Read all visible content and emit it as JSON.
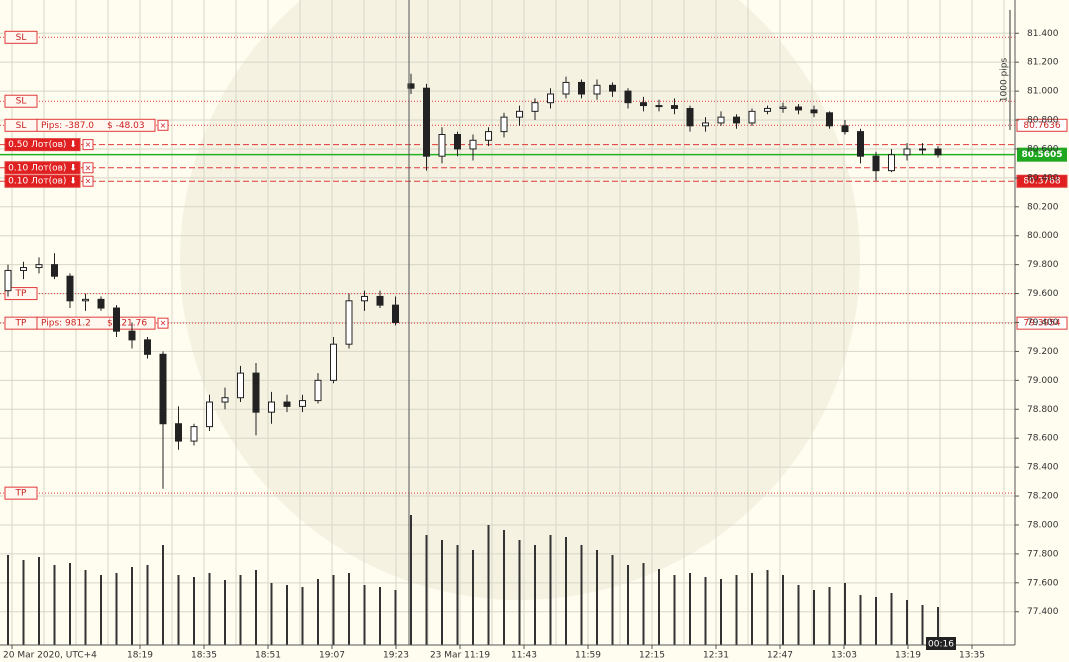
{
  "chart_data": {
    "type": "candlestick",
    "ylim": [
      77.17,
      81.63
    ],
    "yticks": [
      {
        "value": 77.4,
        "label": "77.400"
      },
      {
        "value": 77.6,
        "label": "77.600"
      },
      {
        "value": 77.8,
        "label": "77.800"
      },
      {
        "value": 78.0,
        "label": "78.000"
      },
      {
        "value": 78.2,
        "label": "78.200"
      },
      {
        "value": 78.4,
        "label": "78.400"
      },
      {
        "value": 78.6,
        "label": "78.600"
      },
      {
        "value": 78.8,
        "label": "78.800"
      },
      {
        "value": 79.0,
        "label": "79.000"
      },
      {
        "value": 79.2,
        "label": "79.200"
      },
      {
        "value": 79.4,
        "label": "79.400"
      },
      {
        "value": 79.6,
        "label": "79.600"
      },
      {
        "value": 79.8,
        "label": "79.800"
      },
      {
        "value": 80.0,
        "label": "80.000"
      },
      {
        "value": 80.2,
        "label": "80.200"
      },
      {
        "value": 80.4,
        "label": "80.400"
      },
      {
        "value": 80.6,
        "label": "80.600"
      },
      {
        "value": 80.8,
        "label": "80.800"
      },
      {
        "value": 81.0,
        "label": "81.000"
      },
      {
        "value": 81.2,
        "label": "81.200"
      },
      {
        "value": 81.4,
        "label": "81.400"
      }
    ],
    "xlabels": [
      "20 Mar 2020, UTC+4",
      "18:19",
      "18:35",
      "18:51",
      "19:07",
      "19:23",
      "23 Mar 11:19",
      "11:43",
      "11:59",
      "12:15",
      "12:31",
      "12:47",
      "13:03",
      "13:19",
      "13:35"
    ],
    "grid": true,
    "ohlc": [
      [
        79.62,
        79.8,
        79.58,
        79.76
      ],
      [
        79.76,
        79.82,
        79.7,
        79.78
      ],
      [
        79.78,
        79.85,
        79.74,
        79.8
      ],
      [
        79.8,
        79.88,
        79.7,
        79.72
      ],
      [
        79.72,
        79.74,
        79.5,
        79.55
      ],
      [
        79.55,
        79.6,
        79.48,
        79.56
      ],
      [
        79.56,
        79.58,
        79.48,
        79.5
      ],
      [
        79.5,
        79.52,
        79.3,
        79.34
      ],
      [
        79.34,
        79.4,
        79.22,
        79.28
      ],
      [
        79.28,
        79.3,
        79.15,
        79.18
      ],
      [
        79.18,
        79.2,
        78.25,
        78.7
      ],
      [
        78.7,
        78.82,
        78.52,
        78.58
      ],
      [
        78.58,
        78.7,
        78.55,
        78.68
      ],
      [
        78.68,
        78.9,
        78.65,
        78.85
      ],
      [
        78.85,
        78.95,
        78.8,
        78.88
      ],
      [
        78.88,
        79.1,
        78.85,
        79.05
      ],
      [
        79.05,
        79.12,
        78.62,
        78.78
      ],
      [
        78.78,
        78.92,
        78.7,
        78.85
      ],
      [
        78.85,
        78.9,
        78.78,
        78.82
      ],
      [
        78.82,
        78.9,
        78.78,
        78.86
      ],
      [
        78.86,
        79.05,
        78.84,
        79.0
      ],
      [
        79.0,
        79.3,
        78.98,
        79.25
      ],
      [
        79.25,
        79.6,
        79.22,
        79.55
      ],
      [
        79.55,
        79.62,
        79.48,
        79.58
      ],
      [
        79.58,
        79.62,
        79.5,
        79.52
      ],
      [
        79.52,
        79.58,
        79.38,
        79.4
      ],
      [
        81.05,
        81.12,
        80.98,
        81.02
      ],
      [
        81.02,
        81.05,
        80.45,
        80.55
      ],
      [
        80.55,
        80.75,
        80.5,
        80.7
      ],
      [
        80.7,
        80.72,
        80.55,
        80.6
      ],
      [
        80.6,
        80.7,
        80.52,
        80.66
      ],
      [
        80.66,
        80.75,
        80.62,
        80.72
      ],
      [
        80.72,
        80.85,
        80.68,
        80.82
      ],
      [
        80.82,
        80.9,
        80.76,
        80.86
      ],
      [
        80.86,
        80.95,
        80.8,
        80.92
      ],
      [
        80.92,
        81.02,
        80.88,
        80.98
      ],
      [
        80.98,
        81.1,
        80.95,
        81.06
      ],
      [
        81.06,
        81.08,
        80.95,
        80.98
      ],
      [
        80.98,
        81.08,
        80.94,
        81.04
      ],
      [
        81.04,
        81.06,
        80.96,
        81.0
      ],
      [
        81.0,
        81.02,
        80.88,
        80.92
      ],
      [
        80.92,
        80.96,
        80.86,
        80.9
      ],
      [
        80.9,
        80.94,
        80.86,
        80.9
      ],
      [
        80.9,
        80.95,
        80.84,
        80.88
      ],
      [
        80.88,
        80.9,
        80.72,
        80.76
      ],
      [
        80.76,
        80.82,
        80.72,
        80.78
      ],
      [
        80.78,
        80.86,
        80.76,
        80.82
      ],
      [
        80.82,
        80.84,
        80.74,
        80.78
      ],
      [
        80.78,
        80.88,
        80.76,
        80.86
      ],
      [
        80.86,
        80.9,
        80.84,
        80.88
      ],
      [
        80.88,
        80.92,
        80.85,
        80.89
      ],
      [
        80.89,
        80.91,
        80.84,
        80.87
      ],
      [
        80.87,
        80.9,
        80.82,
        80.85
      ],
      [
        80.85,
        80.86,
        80.74,
        80.76
      ],
      [
        80.76,
        80.8,
        80.7,
        80.72
      ],
      [
        80.72,
        80.74,
        80.5,
        80.55
      ],
      [
        80.55,
        80.58,
        80.38,
        80.45
      ],
      [
        80.45,
        80.6,
        80.44,
        80.56
      ],
      [
        80.56,
        80.64,
        80.52,
        80.6
      ],
      [
        80.6,
        80.64,
        80.56,
        80.6
      ],
      [
        80.6,
        80.62,
        80.54,
        80.56
      ]
    ],
    "volumes": [
      90,
      85,
      88,
      80,
      82,
      75,
      70,
      72,
      78,
      80,
      100,
      70,
      68,
      72,
      65,
      70,
      75,
      62,
      60,
      58,
      66,
      70,
      72,
      60,
      58,
      55,
      130,
      110,
      105,
      100,
      95,
      120,
      115,
      105,
      100,
      110,
      108,
      100,
      95,
      90,
      80,
      82,
      76,
      70,
      72,
      68,
      66,
      70,
      72,
      75,
      70,
      60,
      55,
      58,
      62,
      50,
      48,
      52,
      45,
      40,
      38
    ],
    "volume_lim": [
      0,
      140
    ],
    "levels": [
      {
        "label": "SL",
        "price": 81.372
      },
      {
        "label": "SL",
        "price": 80.93
      },
      {
        "label": "SL",
        "price": 80.7636,
        "pips": "Pips: -387.0",
        "profit": "$ -48.03",
        "tag": "outline"
      },
      {
        "label": "0.50 Лот(ов) ⬇",
        "price": 80.63
      },
      {
        "label": "0.10 Лот(ов) ⬇",
        "price": 80.47
      },
      {
        "label": "0.10 Лот(ов) ⬇",
        "price": 80.3768,
        "tag": "fill"
      },
      {
        "label": "TP",
        "price": 79.6
      },
      {
        "label": "TP",
        "price": 79.3954,
        "pips": "Pips: 981.2",
        "profit": "$ 121.76",
        "tag": "outline"
      },
      {
        "label": "TP",
        "price": 78.22
      }
    ],
    "current_price": 80.5605,
    "scale_label": "1000 pips",
    "countdown": "00:16"
  }
}
